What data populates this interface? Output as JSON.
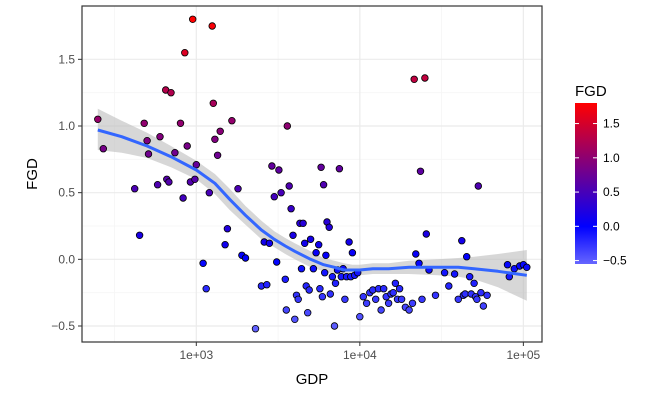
{
  "chart_data": {
    "type": "scatter",
    "xlabel": "GDP",
    "ylabel": "FGD",
    "x_scale": "log10",
    "xlim": [
      200,
      130000
    ],
    "ylim": [
      -0.62,
      1.9
    ],
    "x_ticks": [
      1000,
      10000,
      100000
    ],
    "x_tick_labels": [
      "1e+03",
      "1e+04",
      "1e+05"
    ],
    "y_ticks": [
      -0.5,
      0.0,
      0.5,
      1.0,
      1.5
    ],
    "y_tick_labels": [
      "−0.5",
      "0.0",
      "0.5",
      "1.0",
      "1.5"
    ],
    "grid": true,
    "legend": {
      "title": "FGD",
      "placement": "right",
      "ticks": [
        1.5,
        1.0,
        0.5,
        0.0,
        -0.5
      ],
      "tick_labels": [
        "1.5",
        "1.0",
        "0.5",
        "0.0",
        "−0.5"
      ],
      "range": [
        -0.55,
        1.8
      ]
    },
    "color_scale": {
      "low": "#6666ff",
      "mid": "#0000ff",
      "high": "#ff0000",
      "low_value": -0.55,
      "mid_value": 0.0,
      "high_value": 1.8
    },
    "smooth_color": "#3366ff",
    "ribbon_color": "#bdbdbd",
    "points": [
      [
        250,
        1.05
      ],
      [
        270,
        0.83
      ],
      [
        420,
        0.53
      ],
      [
        450,
        0.18
      ],
      [
        480,
        1.02
      ],
      [
        500,
        0.89
      ],
      [
        510,
        0.79
      ],
      [
        580,
        0.56
      ],
      [
        600,
        0.92
      ],
      [
        650,
        1.27
      ],
      [
        660,
        0.6
      ],
      [
        680,
        0.58
      ],
      [
        700,
        1.25
      ],
      [
        740,
        0.8
      ],
      [
        800,
        1.02
      ],
      [
        830,
        0.46
      ],
      [
        850,
        1.55
      ],
      [
        880,
        0.85
      ],
      [
        920,
        0.58
      ],
      [
        950,
        1.8
      ],
      [
        980,
        0.6
      ],
      [
        1000,
        0.71
      ],
      [
        1100,
        -0.03
      ],
      [
        1150,
        -0.22
      ],
      [
        1200,
        0.5
      ],
      [
        1250,
        1.75
      ],
      [
        1270,
        1.17
      ],
      [
        1300,
        0.9
      ],
      [
        1350,
        0.78
      ],
      [
        1400,
        0.96
      ],
      [
        1500,
        0.11
      ],
      [
        1550,
        0.23
      ],
      [
        1650,
        1.04
      ],
      [
        1800,
        0.53
      ],
      [
        1900,
        0.03
      ],
      [
        2000,
        0.01
      ],
      [
        2300,
        -0.52
      ],
      [
        2500,
        -0.2
      ],
      [
        2600,
        0.13
      ],
      [
        2700,
        -0.19
      ],
      [
        2800,
        0.12
      ],
      [
        2900,
        0.7
      ],
      [
        3000,
        0.47
      ],
      [
        3100,
        -0.02
      ],
      [
        3200,
        0.67
      ],
      [
        3300,
        0.5
      ],
      [
        3500,
        -0.15
      ],
      [
        3550,
        -0.38
      ],
      [
        3600,
        1.0
      ],
      [
        3700,
        0.55
      ],
      [
        3800,
        0.38
      ],
      [
        3900,
        0.18
      ],
      [
        4000,
        -0.45
      ],
      [
        4100,
        -0.27
      ],
      [
        4200,
        -0.3
      ],
      [
        4300,
        0.27
      ],
      [
        4400,
        -0.07
      ],
      [
        4500,
        0.27
      ],
      [
        4600,
        0.12
      ],
      [
        4700,
        -0.2
      ],
      [
        4800,
        -0.4
      ],
      [
        4900,
        -0.23
      ],
      [
        5000,
        0.15
      ],
      [
        5200,
        -0.07
      ],
      [
        5400,
        0.05
      ],
      [
        5600,
        0.11
      ],
      [
        5700,
        -0.22
      ],
      [
        5800,
        0.69
      ],
      [
        5900,
        -0.28
      ],
      [
        6000,
        0.56
      ],
      [
        6100,
        -0.1
      ],
      [
        6200,
        0.03
      ],
      [
        6300,
        0.28
      ],
      [
        6500,
        0.24
      ],
      [
        6600,
        -0.26
      ],
      [
        6800,
        -0.13
      ],
      [
        7000,
        -0.5
      ],
      [
        7100,
        -0.18
      ],
      [
        7300,
        -0.08
      ],
      [
        7500,
        0.68
      ],
      [
        7700,
        -0.13
      ],
      [
        7900,
        -0.07
      ],
      [
        8100,
        -0.3
      ],
      [
        8300,
        -0.13
      ],
      [
        8600,
        0.13
      ],
      [
        8800,
        -0.13
      ],
      [
        9000,
        0.05
      ],
      [
        9300,
        -0.12
      ],
      [
        9700,
        -0.1
      ],
      [
        10000,
        -0.43
      ],
      [
        10500,
        -0.28
      ],
      [
        11000,
        -0.33
      ],
      [
        11500,
        -0.25
      ],
      [
        12000,
        -0.23
      ],
      [
        12500,
        -0.3
      ],
      [
        13000,
        -0.22
      ],
      [
        13500,
        -0.38
      ],
      [
        14000,
        -0.22
      ],
      [
        14500,
        -0.28
      ],
      [
        15000,
        -0.33
      ],
      [
        15500,
        -0.26
      ],
      [
        16000,
        -0.25
      ],
      [
        16500,
        -0.18
      ],
      [
        17000,
        -0.3
      ],
      [
        17500,
        -0.22
      ],
      [
        18000,
        -0.3
      ],
      [
        19000,
        -0.36
      ],
      [
        20000,
        -0.38
      ],
      [
        21000,
        -0.33
      ],
      [
        21500,
        1.35
      ],
      [
        22000,
        0.04
      ],
      [
        23000,
        -0.03
      ],
      [
        23500,
        0.66
      ],
      [
        24000,
        -0.3
      ],
      [
        25000,
        1.36
      ],
      [
        25500,
        0.19
      ],
      [
        26500,
        -0.08
      ],
      [
        29000,
        -0.27
      ],
      [
        33000,
        -0.1
      ],
      [
        35000,
        -0.2
      ],
      [
        38000,
        -0.11
      ],
      [
        40000,
        -0.3
      ],
      [
        42000,
        0.14
      ],
      [
        43000,
        -0.27
      ],
      [
        44000,
        -0.26
      ],
      [
        45000,
        0.02
      ],
      [
        47000,
        -0.13
      ],
      [
        48000,
        -0.26
      ],
      [
        50000,
        -0.18
      ],
      [
        51000,
        -0.28
      ],
      [
        52000,
        -0.3
      ],
      [
        53000,
        0.55
      ],
      [
        55000,
        -0.25
      ],
      [
        57000,
        -0.35
      ],
      [
        60000,
        -0.27
      ],
      [
        80000,
        -0.04
      ],
      [
        82000,
        -0.13
      ],
      [
        88000,
        -0.07
      ],
      [
        95000,
        -0.05
      ],
      [
        100000,
        -0.04
      ],
      [
        105000,
        -0.06
      ]
    ],
    "smooth_line": [
      [
        250,
        0.97
      ],
      [
        350,
        0.92
      ],
      [
        500,
        0.85
      ],
      [
        700,
        0.77
      ],
      [
        1000,
        0.67
      ],
      [
        1300,
        0.57
      ],
      [
        1600,
        0.45
      ],
      [
        2000,
        0.33
      ],
      [
        2500,
        0.22
      ],
      [
        3000,
        0.15
      ],
      [
        3500,
        0.1
      ],
      [
        4000,
        0.06
      ],
      [
        5000,
        0.0
      ],
      [
        6000,
        -0.04
      ],
      [
        7000,
        -0.06
      ],
      [
        8000,
        -0.08
      ],
      [
        9000,
        -0.08
      ],
      [
        10000,
        -0.08
      ],
      [
        12000,
        -0.07
      ],
      [
        15000,
        -0.07
      ],
      [
        20000,
        -0.06
      ],
      [
        30000,
        -0.06
      ],
      [
        40000,
        -0.06
      ],
      [
        50000,
        -0.07
      ],
      [
        70000,
        -0.09
      ],
      [
        105000,
        -0.12
      ]
    ],
    "smooth_ribbon": [
      [
        250,
        0.82,
        1.13
      ],
      [
        350,
        0.8,
        1.04
      ],
      [
        500,
        0.76,
        0.95
      ],
      [
        700,
        0.69,
        0.85
      ],
      [
        1000,
        0.6,
        0.74
      ],
      [
        1300,
        0.49,
        0.64
      ],
      [
        1600,
        0.37,
        0.53
      ],
      [
        2000,
        0.26,
        0.4
      ],
      [
        2500,
        0.15,
        0.29
      ],
      [
        3000,
        0.09,
        0.21
      ],
      [
        3500,
        0.04,
        0.16
      ],
      [
        4000,
        0.0,
        0.12
      ],
      [
        5000,
        -0.06,
        0.06
      ],
      [
        6000,
        -0.09,
        0.01
      ],
      [
        7000,
        -0.11,
        -0.01
      ],
      [
        8000,
        -0.12,
        -0.03
      ],
      [
        9000,
        -0.12,
        -0.04
      ],
      [
        10000,
        -0.12,
        -0.04
      ],
      [
        12000,
        -0.11,
        -0.03
      ],
      [
        15000,
        -0.11,
        -0.03
      ],
      [
        20000,
        -0.11,
        -0.01
      ],
      [
        30000,
        -0.12,
        0.0
      ],
      [
        40000,
        -0.13,
        0.01
      ],
      [
        50000,
        -0.15,
        0.02
      ],
      [
        70000,
        -0.21,
        0.04
      ],
      [
        105000,
        -0.31,
        0.07
      ]
    ]
  }
}
